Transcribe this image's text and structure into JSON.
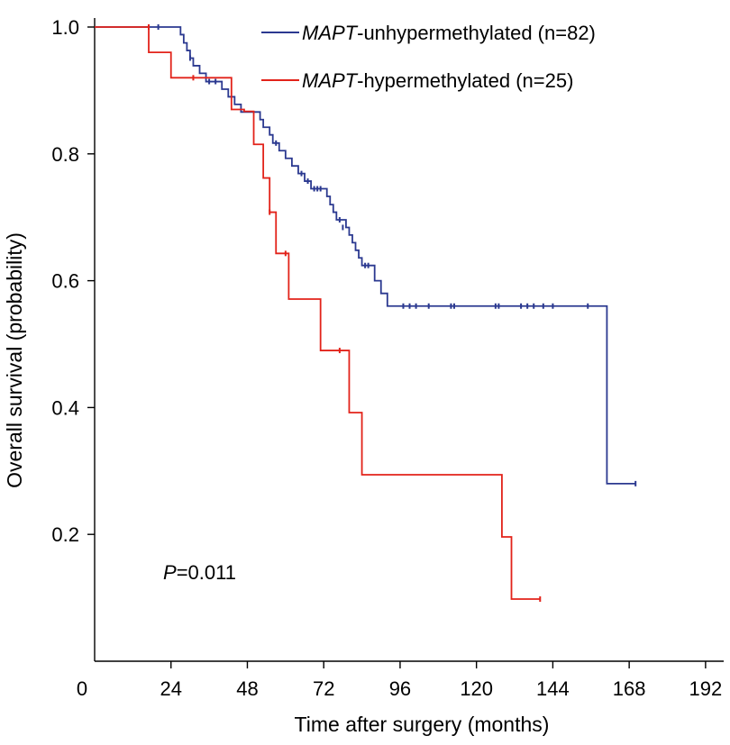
{
  "chart_data": {
    "type": "line",
    "subtype": "kaplan-meier-step",
    "title": "",
    "xlabel": "Time after surgery (months)",
    "ylabel": "Overall survival (probability)",
    "xlim": [
      0,
      196
    ],
    "ylim": [
      0,
      1.0
    ],
    "x_ticks": [
      0,
      24,
      48,
      72,
      96,
      120,
      144,
      168,
      192
    ],
    "y_ticks": [
      0.2,
      0.4,
      0.6,
      0.8,
      1.0
    ],
    "x_tick_labels": [
      "0",
      "24",
      "48",
      "72",
      "96",
      "120",
      "144",
      "168",
      "192"
    ],
    "y_tick_labels": [
      "0.2",
      "0.4",
      "0.6",
      "0.8",
      "1.0"
    ],
    "legend_position": "top-right",
    "annotation": {
      "italic": "P",
      "rest": "=0.011"
    },
    "series": [
      {
        "name": "MAPT-unhypermethylated (n=82)",
        "name_italic": "MAPT",
        "name_rest": "-unhypermethylated (n=82)",
        "color": "#2b3990",
        "steps": [
          [
            0,
            1.0
          ],
          [
            27,
            0.988
          ],
          [
            28,
            0.975
          ],
          [
            29,
            0.963
          ],
          [
            30,
            0.951
          ],
          [
            31,
            0.939
          ],
          [
            33,
            0.927
          ],
          [
            35,
            0.914
          ],
          [
            40,
            0.902
          ],
          [
            42,
            0.89
          ],
          [
            44,
            0.878
          ],
          [
            46,
            0.866
          ],
          [
            52,
            0.854
          ],
          [
            53,
            0.842
          ],
          [
            55,
            0.83
          ],
          [
            56,
            0.817
          ],
          [
            58,
            0.805
          ],
          [
            60,
            0.793
          ],
          [
            62,
            0.781
          ],
          [
            64,
            0.769
          ],
          [
            66,
            0.757
          ],
          [
            68,
            0.745
          ],
          [
            73,
            0.733
          ],
          [
            74,
            0.72
          ],
          [
            75,
            0.708
          ],
          [
            76,
            0.696
          ],
          [
            79,
            0.684
          ],
          [
            80,
            0.672
          ],
          [
            81,
            0.66
          ],
          [
            82,
            0.648
          ],
          [
            83,
            0.636
          ],
          [
            84,
            0.624
          ],
          [
            88,
            0.6
          ],
          [
            90,
            0.58
          ],
          [
            92,
            0.56
          ],
          [
            161,
            0.28
          ],
          [
            170,
            0.28
          ]
        ],
        "censored": [
          [
            17,
            1.0
          ],
          [
            20,
            1.0
          ],
          [
            30,
            0.951
          ],
          [
            36,
            0.914
          ],
          [
            38,
            0.914
          ],
          [
            57,
            0.817
          ],
          [
            65,
            0.769
          ],
          [
            67,
            0.757
          ],
          [
            69,
            0.745
          ],
          [
            70,
            0.745
          ],
          [
            71,
            0.745
          ],
          [
            77,
            0.696
          ],
          [
            78,
            0.684
          ],
          [
            85,
            0.624
          ],
          [
            86,
            0.624
          ],
          [
            97,
            0.56
          ],
          [
            99,
            0.56
          ],
          [
            101,
            0.56
          ],
          [
            105,
            0.56
          ],
          [
            112,
            0.56
          ],
          [
            113,
            0.56
          ],
          [
            126,
            0.56
          ],
          [
            127,
            0.56
          ],
          [
            134,
            0.56
          ],
          [
            136,
            0.56
          ],
          [
            138,
            0.56
          ],
          [
            141,
            0.56
          ],
          [
            144,
            0.56
          ],
          [
            155,
            0.56
          ],
          [
            170,
            0.28
          ]
        ]
      },
      {
        "name": "MAPT-hypermethylated (n=25)",
        "name_italic": "MAPT",
        "name_rest": "-hypermethylated (n=25)",
        "color": "#e2231a",
        "steps": [
          [
            0,
            1.0
          ],
          [
            17,
            0.96
          ],
          [
            24,
            0.92
          ],
          [
            34,
            0.92
          ],
          [
            39,
            0.92
          ],
          [
            43,
            0.87
          ],
          [
            47,
            0.867
          ],
          [
            50,
            0.815
          ],
          [
            53,
            0.762
          ],
          [
            55,
            0.708
          ],
          [
            57,
            0.643
          ],
          [
            61,
            0.571
          ],
          [
            71,
            0.49
          ],
          [
            80,
            0.392
          ],
          [
            84,
            0.294
          ],
          [
            128,
            0.196
          ],
          [
            131,
            0.098
          ],
          [
            140,
            0.098
          ]
        ],
        "censored": [
          [
            17,
            1.0
          ],
          [
            31,
            0.92
          ],
          [
            55,
            0.708
          ],
          [
            60,
            0.643
          ],
          [
            77,
            0.49
          ],
          [
            140,
            0.098
          ]
        ]
      }
    ]
  }
}
